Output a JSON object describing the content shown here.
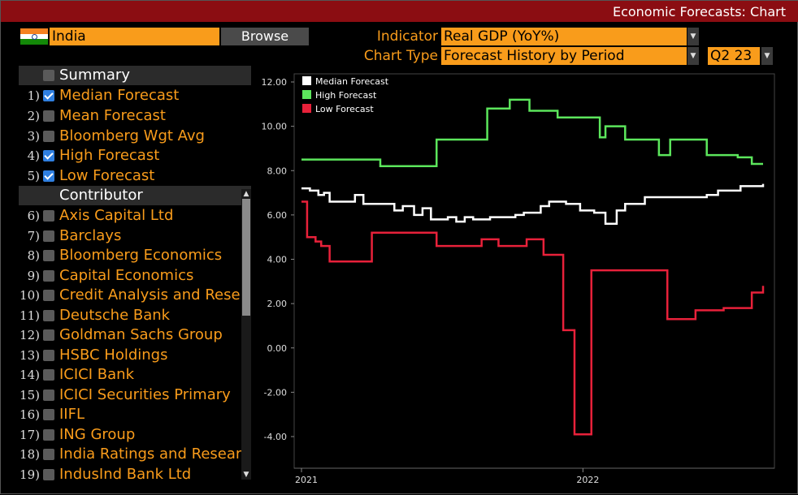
{
  "window": {
    "title": "Economic Forecasts: Chart"
  },
  "country": {
    "name": "India",
    "browse_label": "Browse"
  },
  "controls": {
    "indicator_label": "Indicator",
    "indicator_value": "Real GDP (YoY%)",
    "chart_type_label": "Chart Type",
    "chart_type_value": "Forecast History by Period",
    "period_value": "Q2 23"
  },
  "panel": {
    "summary_header": "Summary",
    "summary_items": [
      {
        "num": "1)",
        "label": "Median Forecast",
        "checked": true
      },
      {
        "num": "2)",
        "label": "Mean Forecast",
        "checked": false
      },
      {
        "num": "3)",
        "label": "Bloomberg Wgt Avg",
        "checked": false
      },
      {
        "num": "4)",
        "label": "High Forecast",
        "checked": true
      },
      {
        "num": "5)",
        "label": "Low Forecast",
        "checked": true
      }
    ],
    "contributor_header": "Contributor",
    "contributors": [
      {
        "num": "6)",
        "label": "Axis Capital Ltd"
      },
      {
        "num": "7)",
        "label": "Barclays"
      },
      {
        "num": "8)",
        "label": "Bloomberg Economics"
      },
      {
        "num": "9)",
        "label": "Capital Economics"
      },
      {
        "num": "10)",
        "label": "Credit Analysis and Rese"
      },
      {
        "num": "11)",
        "label": "Deutsche Bank"
      },
      {
        "num": "12)",
        "label": "Goldman Sachs Group"
      },
      {
        "num": "13)",
        "label": "HSBC Holdings"
      },
      {
        "num": "14)",
        "label": "ICICI Bank"
      },
      {
        "num": "15)",
        "label": "ICICI Securities Primary"
      },
      {
        "num": "16)",
        "label": "IIFL"
      },
      {
        "num": "17)",
        "label": "ING Group"
      },
      {
        "num": "18)",
        "label": "India Ratings and Resear"
      },
      {
        "num": "19)",
        "label": "IndusInd Bank Ltd"
      }
    ]
  },
  "colors": {
    "median": "#ffffff",
    "high": "#5ce65c",
    "low": "#e8213a",
    "accent": "#f99c1b",
    "titlebar": "#8b0d12"
  },
  "chart_data": {
    "type": "line",
    "title": "",
    "xlabel": "",
    "ylabel": "",
    "x_domain": [
      2021.0,
      2022.64
    ],
    "ylim": [
      -5,
      12.4
    ],
    "y_ticks": [
      -4,
      -2,
      0,
      2,
      4,
      6,
      8,
      10,
      12
    ],
    "y_tick_labels": [
      "-4.00",
      "-2.00",
      "0.00",
      "2.00",
      "4.00",
      "6.00",
      "8.00",
      "10.00",
      "12.00"
    ],
    "x_ticks": [
      2021.0,
      2022.0
    ],
    "x_tick_labels": [
      "2021",
      "2022"
    ],
    "legend_position": "top-left",
    "series": [
      {
        "name": "Median Forecast",
        "color": "#ffffff",
        "step": true,
        "x": [
          2021.0,
          2021.03,
          2021.06,
          2021.08,
          2021.1,
          2021.16,
          2021.19,
          2021.22,
          2021.27,
          2021.33,
          2021.36,
          2021.4,
          2021.43,
          2021.46,
          2021.52,
          2021.55,
          2021.58,
          2021.61,
          2021.64,
          2021.67,
          2021.7,
          2021.73,
          2021.76,
          2021.79,
          2021.82,
          2021.85,
          2021.88,
          2021.91,
          2021.94,
          2021.99,
          2022.04,
          2022.08,
          2022.12,
          2022.15,
          2022.18,
          2022.22,
          2022.26,
          2022.3,
          2022.35,
          2022.4,
          2022.44,
          2022.48,
          2022.52,
          2022.56,
          2022.6,
          2022.64
        ],
        "values": [
          7.2,
          7.1,
          6.9,
          7.0,
          6.6,
          6.6,
          6.9,
          6.5,
          6.5,
          6.2,
          6.4,
          6.0,
          6.3,
          5.8,
          5.9,
          5.7,
          5.9,
          5.8,
          5.8,
          5.9,
          5.9,
          5.9,
          6.0,
          6.1,
          6.1,
          6.4,
          6.6,
          6.6,
          6.5,
          6.2,
          6.1,
          5.6,
          6.2,
          6.5,
          6.5,
          6.8,
          6.8,
          6.8,
          6.8,
          6.8,
          6.9,
          7.1,
          7.1,
          7.3,
          7.3,
          7.4
        ]
      },
      {
        "name": "High Forecast",
        "color": "#5ce65c",
        "step": true,
        "x": [
          2021.0,
          2021.28,
          2021.48,
          2021.66,
          2021.74,
          2021.81,
          2021.91,
          2022.03,
          2022.06,
          2022.08,
          2022.11,
          2022.15,
          2022.18,
          2022.24,
          2022.27,
          2022.31,
          2022.34,
          2022.44,
          2022.48,
          2022.55,
          2022.6,
          2022.64
        ],
        "values": [
          8.5,
          8.2,
          9.4,
          10.8,
          11.2,
          10.7,
          10.4,
          10.4,
          9.5,
          10.0,
          10.0,
          9.4,
          9.4,
          9.4,
          8.7,
          9.4,
          9.4,
          8.7,
          8.7,
          8.6,
          8.3,
          8.3
        ]
      },
      {
        "name": "Low Forecast",
        "color": "#e8213a",
        "step": true,
        "x": [
          2021.0,
          2021.02,
          2021.05,
          2021.07,
          2021.1,
          2021.2,
          2021.25,
          2021.41,
          2021.48,
          2021.56,
          2021.64,
          2021.7,
          2021.75,
          2021.8,
          2021.86,
          2021.93,
          2021.97,
          2022.03,
          2022.1,
          2022.2,
          2022.23,
          2022.3,
          2022.4,
          2022.5,
          2022.6,
          2022.64
        ],
        "values": [
          6.6,
          5.0,
          4.8,
          4.6,
          3.9,
          3.9,
          5.2,
          5.2,
          4.6,
          4.6,
          4.9,
          4.6,
          4.6,
          4.9,
          4.2,
          0.8,
          -3.9,
          3.5,
          3.5,
          3.5,
          3.5,
          1.3,
          1.7,
          1.8,
          2.5,
          2.8
        ]
      }
    ]
  }
}
